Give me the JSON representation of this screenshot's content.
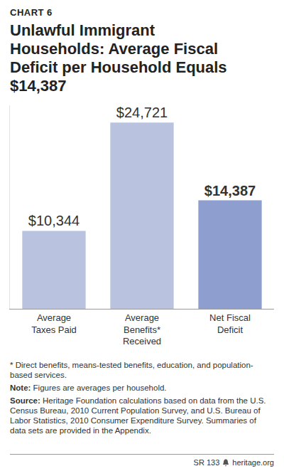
{
  "header": {
    "chart_number": "CHART 6"
  },
  "chart_data": {
    "type": "bar",
    "title": "Unlawful Immigrant Households: Average Fiscal Deficit per Household Equals $14,387",
    "categories": [
      "Average Taxes Paid",
      "Average Benefits* Received",
      "Net Fiscal Deficit"
    ],
    "values": [
      10344,
      24721,
      14387
    ],
    "value_labels": [
      "$10,344",
      "$24,721",
      "$14,387"
    ],
    "colors": [
      "#b9c3e0",
      "#b9c3e0",
      "#8e9ecf"
    ],
    "ylim": [
      0,
      27000
    ],
    "yticks": [],
    "grid": false,
    "data_labels": true,
    "tick_labels": "x"
  },
  "footer": {
    "footnote": "* Direct benefits, means-tested benefits, education, and population-based services.",
    "note": {
      "label": "Note:",
      "text": "Figures are averages per household."
    },
    "source": {
      "label": "Source:",
      "text": "Heritage Foundation calculations based on data from the U.S. Census Bureau, 2010 Current Population Survey, and U.S. Bureau of Labor Statistics, 2010 Consumer Expenditure Survey. Summaries of data sets are provided in the Appendix."
    },
    "report_id": "SR 133",
    "site": "heritage.org"
  }
}
